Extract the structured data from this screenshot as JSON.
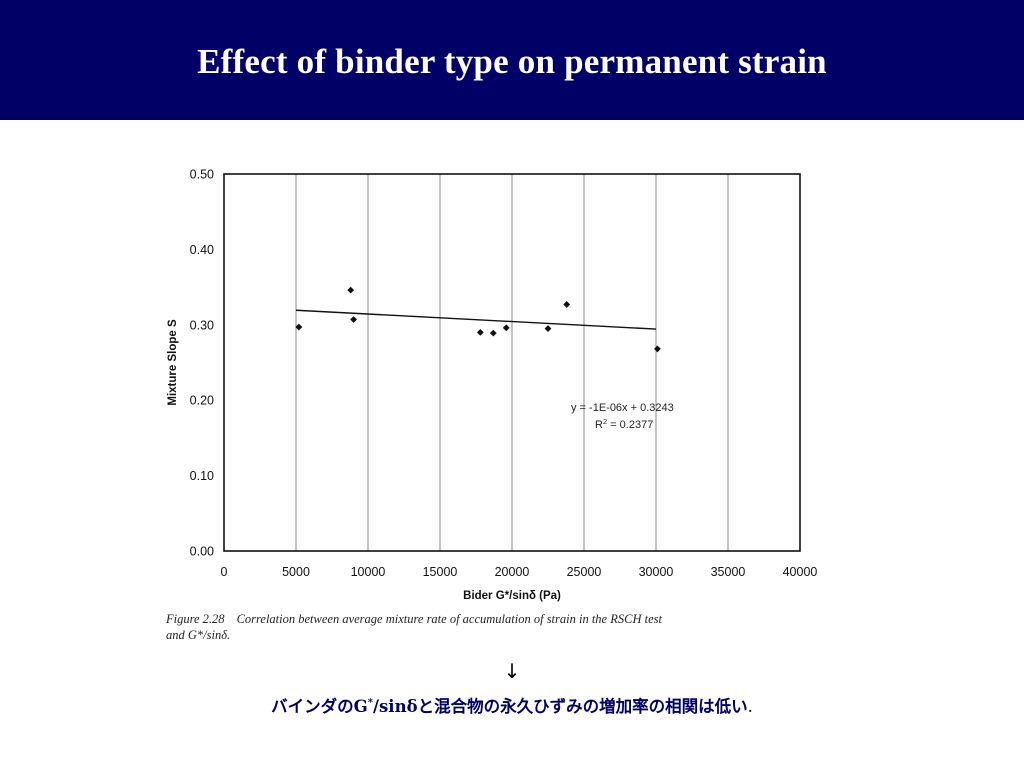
{
  "slide": {
    "title": "Effect of binder type on permanent strain"
  },
  "chart_data": {
    "type": "scatter",
    "xlabel": "Bider G*/sinδ (Pa)",
    "ylabel": "Mixture Slope S",
    "xlim": [
      0,
      40000
    ],
    "ylim": [
      0.0,
      0.5
    ],
    "x_ticks": [
      0,
      5000,
      10000,
      15000,
      20000,
      25000,
      30000,
      35000,
      40000
    ],
    "y_ticks": [
      0.0,
      0.1,
      0.2,
      0.3,
      0.4,
      0.5
    ],
    "x_tick_labels": [
      "0",
      "5000",
      "10000",
      "15000",
      "20000",
      "25000",
      "30000",
      "35000",
      "40000"
    ],
    "y_tick_labels": [
      "0.00",
      "0.10",
      "0.20",
      "0.30",
      "0.40",
      "0.50"
    ],
    "grid": "vertical",
    "points": [
      {
        "x": 5200,
        "y": 0.297
      },
      {
        "x": 8800,
        "y": 0.346
      },
      {
        "x": 9000,
        "y": 0.307
      },
      {
        "x": 17800,
        "y": 0.29
      },
      {
        "x": 18700,
        "y": 0.289
      },
      {
        "x": 19600,
        "y": 0.296
      },
      {
        "x": 22500,
        "y": 0.295
      },
      {
        "x": 23800,
        "y": 0.327
      },
      {
        "x": 30100,
        "y": 0.268
      }
    ],
    "trendline": {
      "slope": -1e-06,
      "intercept": 0.3243,
      "x_range": [
        5000,
        30000
      ],
      "equation": "y = -1E-06x + 0.3243",
      "r2_prefix": "R",
      "r2_sup": "2",
      "r2_value": " = 0.2377"
    }
  },
  "caption": {
    "label": "Figure 2.28",
    "line1": "Correlation between average mixture rate of accumulation of strain in the RSCH test",
    "line2": "and G*/sinδ."
  },
  "note": {
    "arrow": "↓",
    "pre": "バインダのG",
    "sup": "*",
    "post": "/sinδと混合物の永久ひずみの増加率の相関は低い",
    "period": "."
  }
}
